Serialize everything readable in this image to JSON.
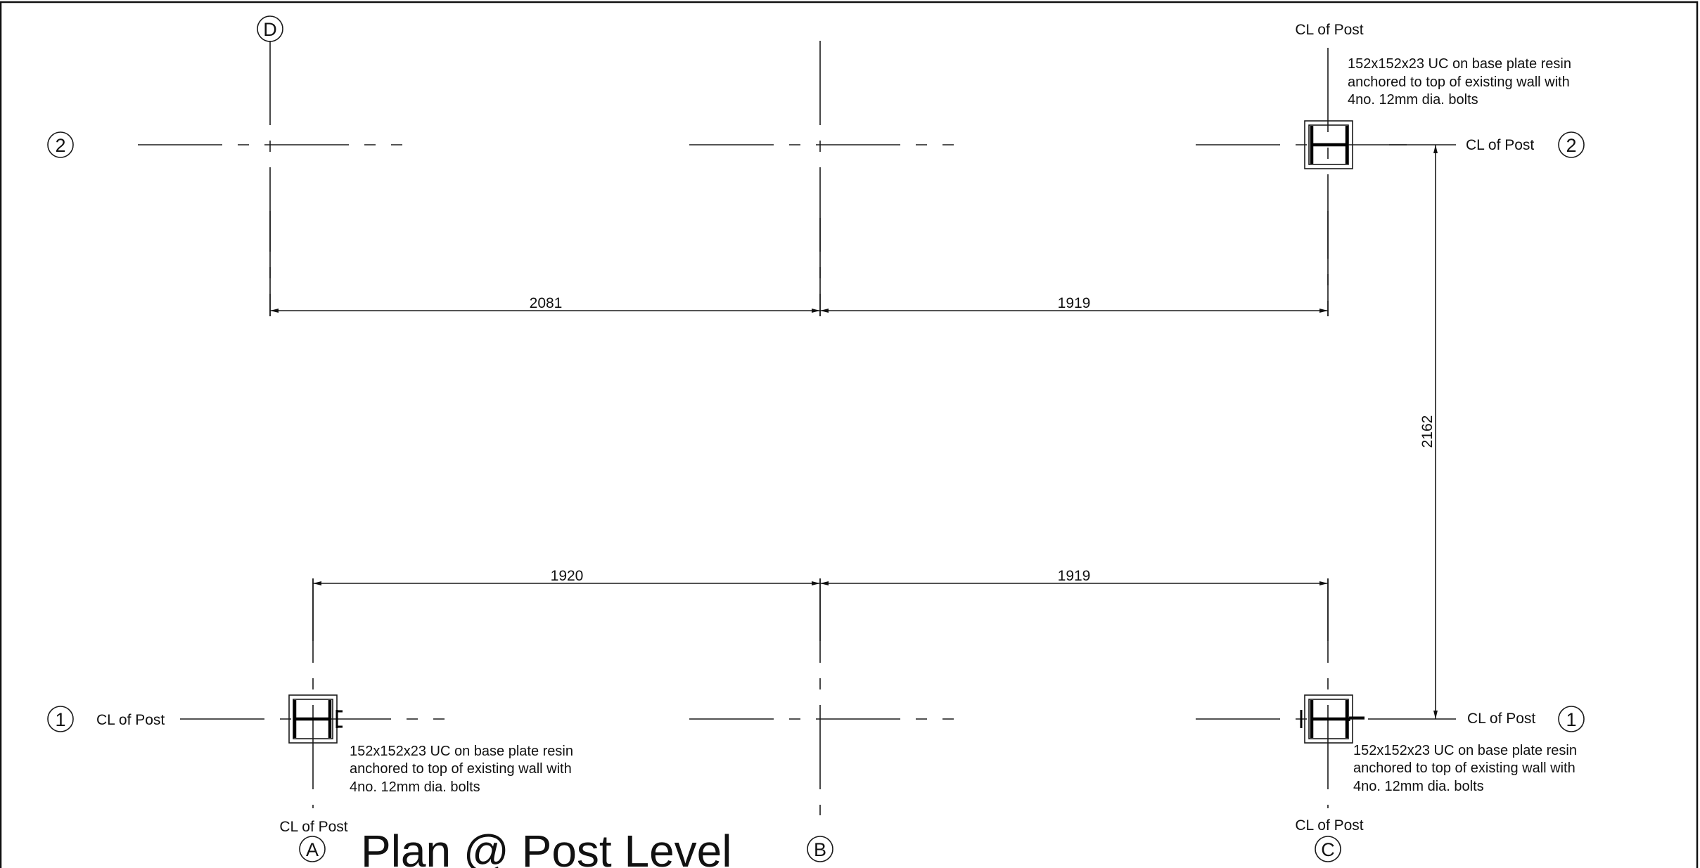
{
  "title": "Plan @ Post Level",
  "grid_labels": {
    "column_D": "D",
    "column_A": "A",
    "column_B": "B",
    "column_C": "C",
    "row_1_left": "1",
    "row_1_right": "1",
    "row_2_left": "2",
    "row_2_right": "2"
  },
  "cl_labels": {
    "top_post_C": "CL of Post",
    "row2_right": "CL of Post",
    "row1_left": "CL of Post",
    "row1_right": "CL of Post",
    "bottom_post_A": "CL of Post",
    "bottom_post_C": "CL of Post"
  },
  "notes": {
    "top_right": [
      "152x152x23 UC on base plate resin",
      "anchored to top of existing wall with",
      "4no. 12mm dia. bolts"
    ],
    "bottom_left": [
      "152x152x23 UC on base plate resin",
      "anchored to top of existing wall with",
      "4no. 12mm dia. bolts"
    ],
    "bottom_right": [
      "152x152x23 UC on base plate resin",
      "anchored to top of existing wall with",
      "4no. 12mm dia. bolts"
    ]
  },
  "dimensions": {
    "top_left": "2081",
    "top_right": "1919",
    "bottom_left": "1920",
    "bottom_right": "1919",
    "vertical_right": "2162"
  }
}
